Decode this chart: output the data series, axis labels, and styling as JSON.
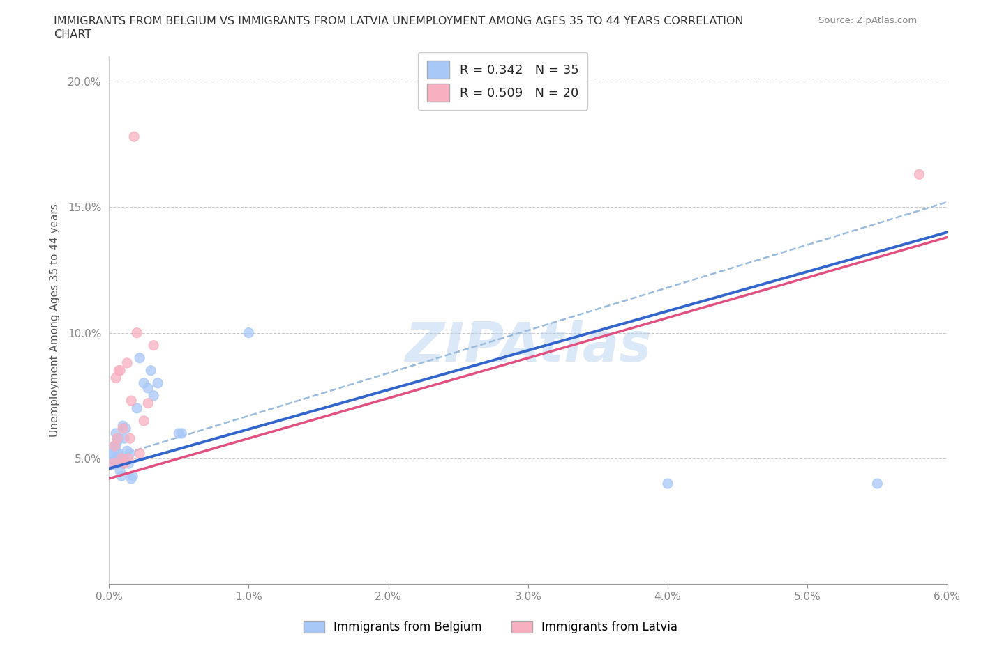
{
  "title1": "IMMIGRANTS FROM BELGIUM VS IMMIGRANTS FROM LATVIA UNEMPLOYMENT AMONG AGES 35 TO 44 YEARS CORRELATION",
  "title2": "CHART",
  "source": "Source: ZipAtlas.com",
  "ylabel": "Unemployment Among Ages 35 to 44 years",
  "legend_label1": "Immigrants from Belgium",
  "legend_label2": "Immigrants from Latvia",
  "R1": 0.342,
  "N1": 35,
  "R2": 0.509,
  "N2": 20,
  "xlim": [
    0.0,
    0.06
  ],
  "ylim": [
    0.0,
    0.21
  ],
  "xticks": [
    0.0,
    0.01,
    0.02,
    0.03,
    0.04,
    0.05,
    0.06
  ],
  "xticklabels": [
    "0.0%",
    "1.0%",
    "2.0%",
    "3.0%",
    "4.0%",
    "5.0%",
    "6.0%"
  ],
  "yticks": [
    0.0,
    0.05,
    0.1,
    0.15,
    0.2
  ],
  "yticklabels": [
    "",
    "5.0%",
    "10.0%",
    "15.0%",
    "20.0%"
  ],
  "color_belgium": "#a8c8f8",
  "color_latvia": "#f8b0c0",
  "line_color_belgium": "#3366cc",
  "line_color_latvia": "#e05080",
  "line_color_dashed": "#99bbdd",
  "watermark": "ZIPAtlas",
  "belgium_x": [
    0.0003,
    0.0003,
    0.0004,
    0.0004,
    0.0005,
    0.0005,
    0.0005,
    0.0006,
    0.0006,
    0.0007,
    0.0007,
    0.0008,
    0.0008,
    0.0009,
    0.001,
    0.001,
    0.0011,
    0.0012,
    0.0013,
    0.0014,
    0.0015,
    0.0016,
    0.0017,
    0.002,
    0.0022,
    0.0025,
    0.0028,
    0.003,
    0.0032,
    0.0035,
    0.005,
    0.0052,
    0.01,
    0.04,
    0.055
  ],
  "belgium_y": [
    0.05,
    0.052,
    0.048,
    0.055,
    0.05,
    0.055,
    0.06,
    0.05,
    0.057,
    0.052,
    0.058,
    0.05,
    0.045,
    0.043,
    0.063,
    0.048,
    0.058,
    0.062,
    0.053,
    0.048,
    0.052,
    0.042,
    0.043,
    0.07,
    0.09,
    0.08,
    0.078,
    0.085,
    0.075,
    0.08,
    0.06,
    0.06,
    0.1,
    0.04,
    0.04
  ],
  "belgium_size": [
    500,
    100,
    100,
    100,
    100,
    100,
    100,
    100,
    100,
    100,
    100,
    100,
    100,
    100,
    100,
    100,
    100,
    100,
    100,
    100,
    100,
    100,
    100,
    100,
    100,
    100,
    100,
    100,
    100,
    100,
    100,
    100,
    100,
    100,
    100
  ],
  "latvia_x": [
    0.0003,
    0.0004,
    0.0005,
    0.0006,
    0.0007,
    0.0008,
    0.0009,
    0.001,
    0.0011,
    0.0013,
    0.0014,
    0.0015,
    0.0016,
    0.0018,
    0.002,
    0.0022,
    0.0025,
    0.0028,
    0.0032,
    0.058
  ],
  "latvia_y": [
    0.048,
    0.055,
    0.082,
    0.058,
    0.085,
    0.085,
    0.05,
    0.062,
    0.048,
    0.088,
    0.05,
    0.058,
    0.073,
    0.178,
    0.1,
    0.052,
    0.065,
    0.072,
    0.095,
    0.163
  ],
  "latvia_size": [
    100,
    100,
    100,
    100,
    100,
    100,
    100,
    100,
    100,
    100,
    100,
    100,
    100,
    100,
    100,
    100,
    100,
    100,
    100,
    100
  ],
  "trend_b_x0": 0.0,
  "trend_b_y0": 0.046,
  "trend_b_x1": 0.06,
  "trend_b_y1": 0.14,
  "trend_l_x0": 0.0,
  "trend_l_y0": 0.042,
  "trend_l_x1": 0.06,
  "trend_l_y1": 0.138,
  "trend_d_x0": 0.0,
  "trend_d_y0": 0.05,
  "trend_d_x1": 0.06,
  "trend_d_y1": 0.152
}
